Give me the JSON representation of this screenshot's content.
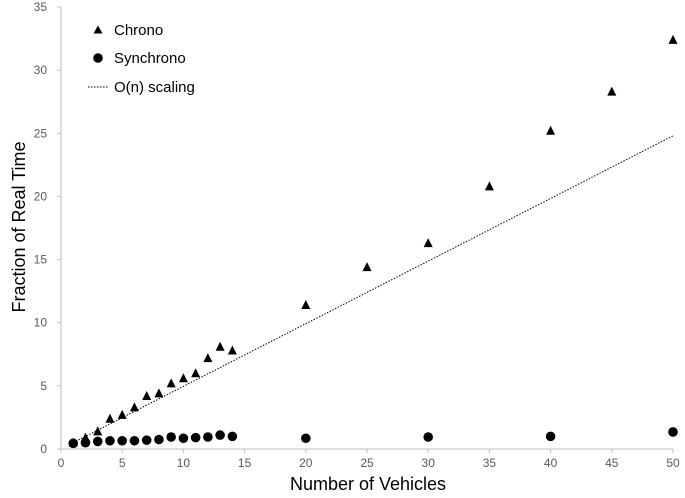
{
  "chart_data": {
    "type": "scatter",
    "xlabel": "Number of Vehicles",
    "ylabel": "Fraction of Real Time",
    "xlim": [
      0,
      50
    ],
    "ylim": [
      0,
      35
    ],
    "xticks": [
      0,
      5,
      10,
      15,
      20,
      25,
      30,
      35,
      40,
      45,
      50
    ],
    "yticks": [
      0,
      5,
      10,
      15,
      20,
      25,
      30,
      35
    ],
    "grid": false,
    "legend_position": "top-left",
    "series": [
      {
        "name": "Chrono",
        "marker": "triangle",
        "color": "#000000",
        "x": [
          1,
          2,
          3,
          4,
          5,
          6,
          7,
          8,
          9,
          10,
          11,
          12,
          13,
          14,
          20,
          25,
          30,
          35,
          40,
          45,
          50
        ],
        "y": [
          0.5,
          0.9,
          1.4,
          2.4,
          2.7,
          3.3,
          4.2,
          4.4,
          5.2,
          5.6,
          6.0,
          7.2,
          8.1,
          7.8,
          11.4,
          14.4,
          16.3,
          20.8,
          25.2,
          28.3,
          32.4
        ]
      },
      {
        "name": "Synchrono",
        "marker": "circle",
        "color": "#000000",
        "x": [
          1,
          2,
          3,
          4,
          5,
          6,
          7,
          8,
          9,
          10,
          11,
          12,
          13,
          14,
          20,
          30,
          40,
          50
        ],
        "y": [
          0.45,
          0.5,
          0.6,
          0.65,
          0.65,
          0.65,
          0.7,
          0.75,
          0.95,
          0.85,
          0.9,
          0.95,
          1.1,
          1.0,
          0.85,
          0.95,
          1.0,
          1.35
        ]
      },
      {
        "name": "O(n) scaling",
        "line": "dotted",
        "color": "#000000",
        "x": [
          1,
          50
        ],
        "y": [
          0.5,
          24.8
        ]
      }
    ]
  }
}
